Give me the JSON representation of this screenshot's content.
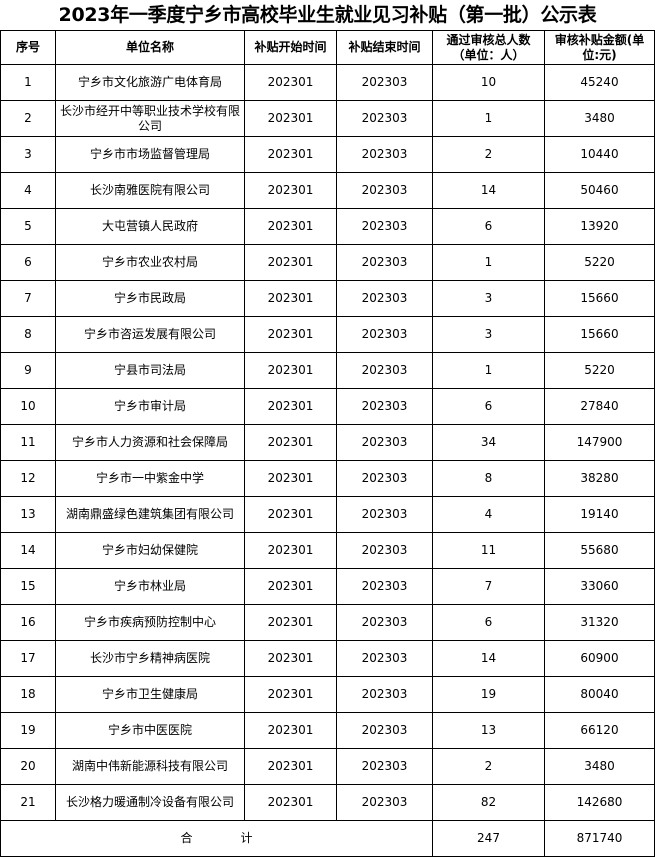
{
  "title": "2023年一季度宁乡市高校毕业生就业见习补贴（第一批）公示表",
  "headers": [
    "序号",
    "单位名称",
    "补贴开始时间",
    "补贴结束时间",
    "通过审核总人数（单位：人）",
    "审核补贴金额(单位:元)"
  ],
  "rows": [
    [
      "1",
      "宁乡市文化旅游广电体育局",
      "202301",
      "202303",
      "10",
      "45240"
    ],
    [
      "2",
      "长沙市经开中等职业技术学校有限公司",
      "202301",
      "202303",
      "1",
      "3480"
    ],
    [
      "3",
      "宁乡市市场监督管理局",
      "202301",
      "202303",
      "2",
      "10440"
    ],
    [
      "4",
      "长沙南雅医院有限公司",
      "202301",
      "202303",
      "14",
      "50460"
    ],
    [
      "5",
      "大屯营镇人民政府",
      "202301",
      "202303",
      "6",
      "13920"
    ],
    [
      "6",
      "宁乡市农业农村局",
      "202301",
      "202303",
      "1",
      "5220"
    ],
    [
      "7",
      "宁乡市民政局",
      "202301",
      "202303",
      "3",
      "15660"
    ],
    [
      "8",
      "宁乡市咨运发展有限公司",
      "202301",
      "202303",
      "3",
      "15660"
    ],
    [
      "9",
      "宁县市司法局",
      "202301",
      "202303",
      "1",
      "5220"
    ],
    [
      "10",
      "宁乡市审计局",
      "202301",
      "202303",
      "6",
      "27840"
    ],
    [
      "11",
      "宁乡市人力资源和社会保障局",
      "202301",
      "202303",
      "34",
      "147900"
    ],
    [
      "12",
      "宁乡市一中紫金中学",
      "202301",
      "202303",
      "8",
      "38280"
    ],
    [
      "13",
      "湖南鼎盛绿色建筑集团有限公司",
      "202301",
      "202303",
      "4",
      "19140"
    ],
    [
      "14",
      "宁乡市妇幼保健院",
      "202301",
      "202303",
      "11",
      "55680"
    ],
    [
      "15",
      "宁乡市林业局",
      "202301",
      "202303",
      "7",
      "33060"
    ],
    [
      "16",
      "宁乡市疾病预防控制中心",
      "202301",
      "202303",
      "6",
      "31320"
    ],
    [
      "17",
      "长沙市宁乡精神病医院",
      "202301",
      "202303",
      "14",
      "60900"
    ],
    [
      "18",
      "宁乡市卫生健康局",
      "202301",
      "202303",
      "19",
      "80040"
    ],
    [
      "19",
      "宁乡市中医医院",
      "202301",
      "202303",
      "13",
      "66120"
    ],
    [
      "20",
      "湖南中伟新能源科技有限公司",
      "202301",
      "202303",
      "2",
      "3480"
    ],
    [
      "21",
      "长沙格力暖通制冷设备有限公司",
      "202301",
      "202303",
      "82",
      "142680"
    ]
  ],
  "total": {
    "label": "合　　　　计",
    "people": "247",
    "amount": "871740"
  }
}
